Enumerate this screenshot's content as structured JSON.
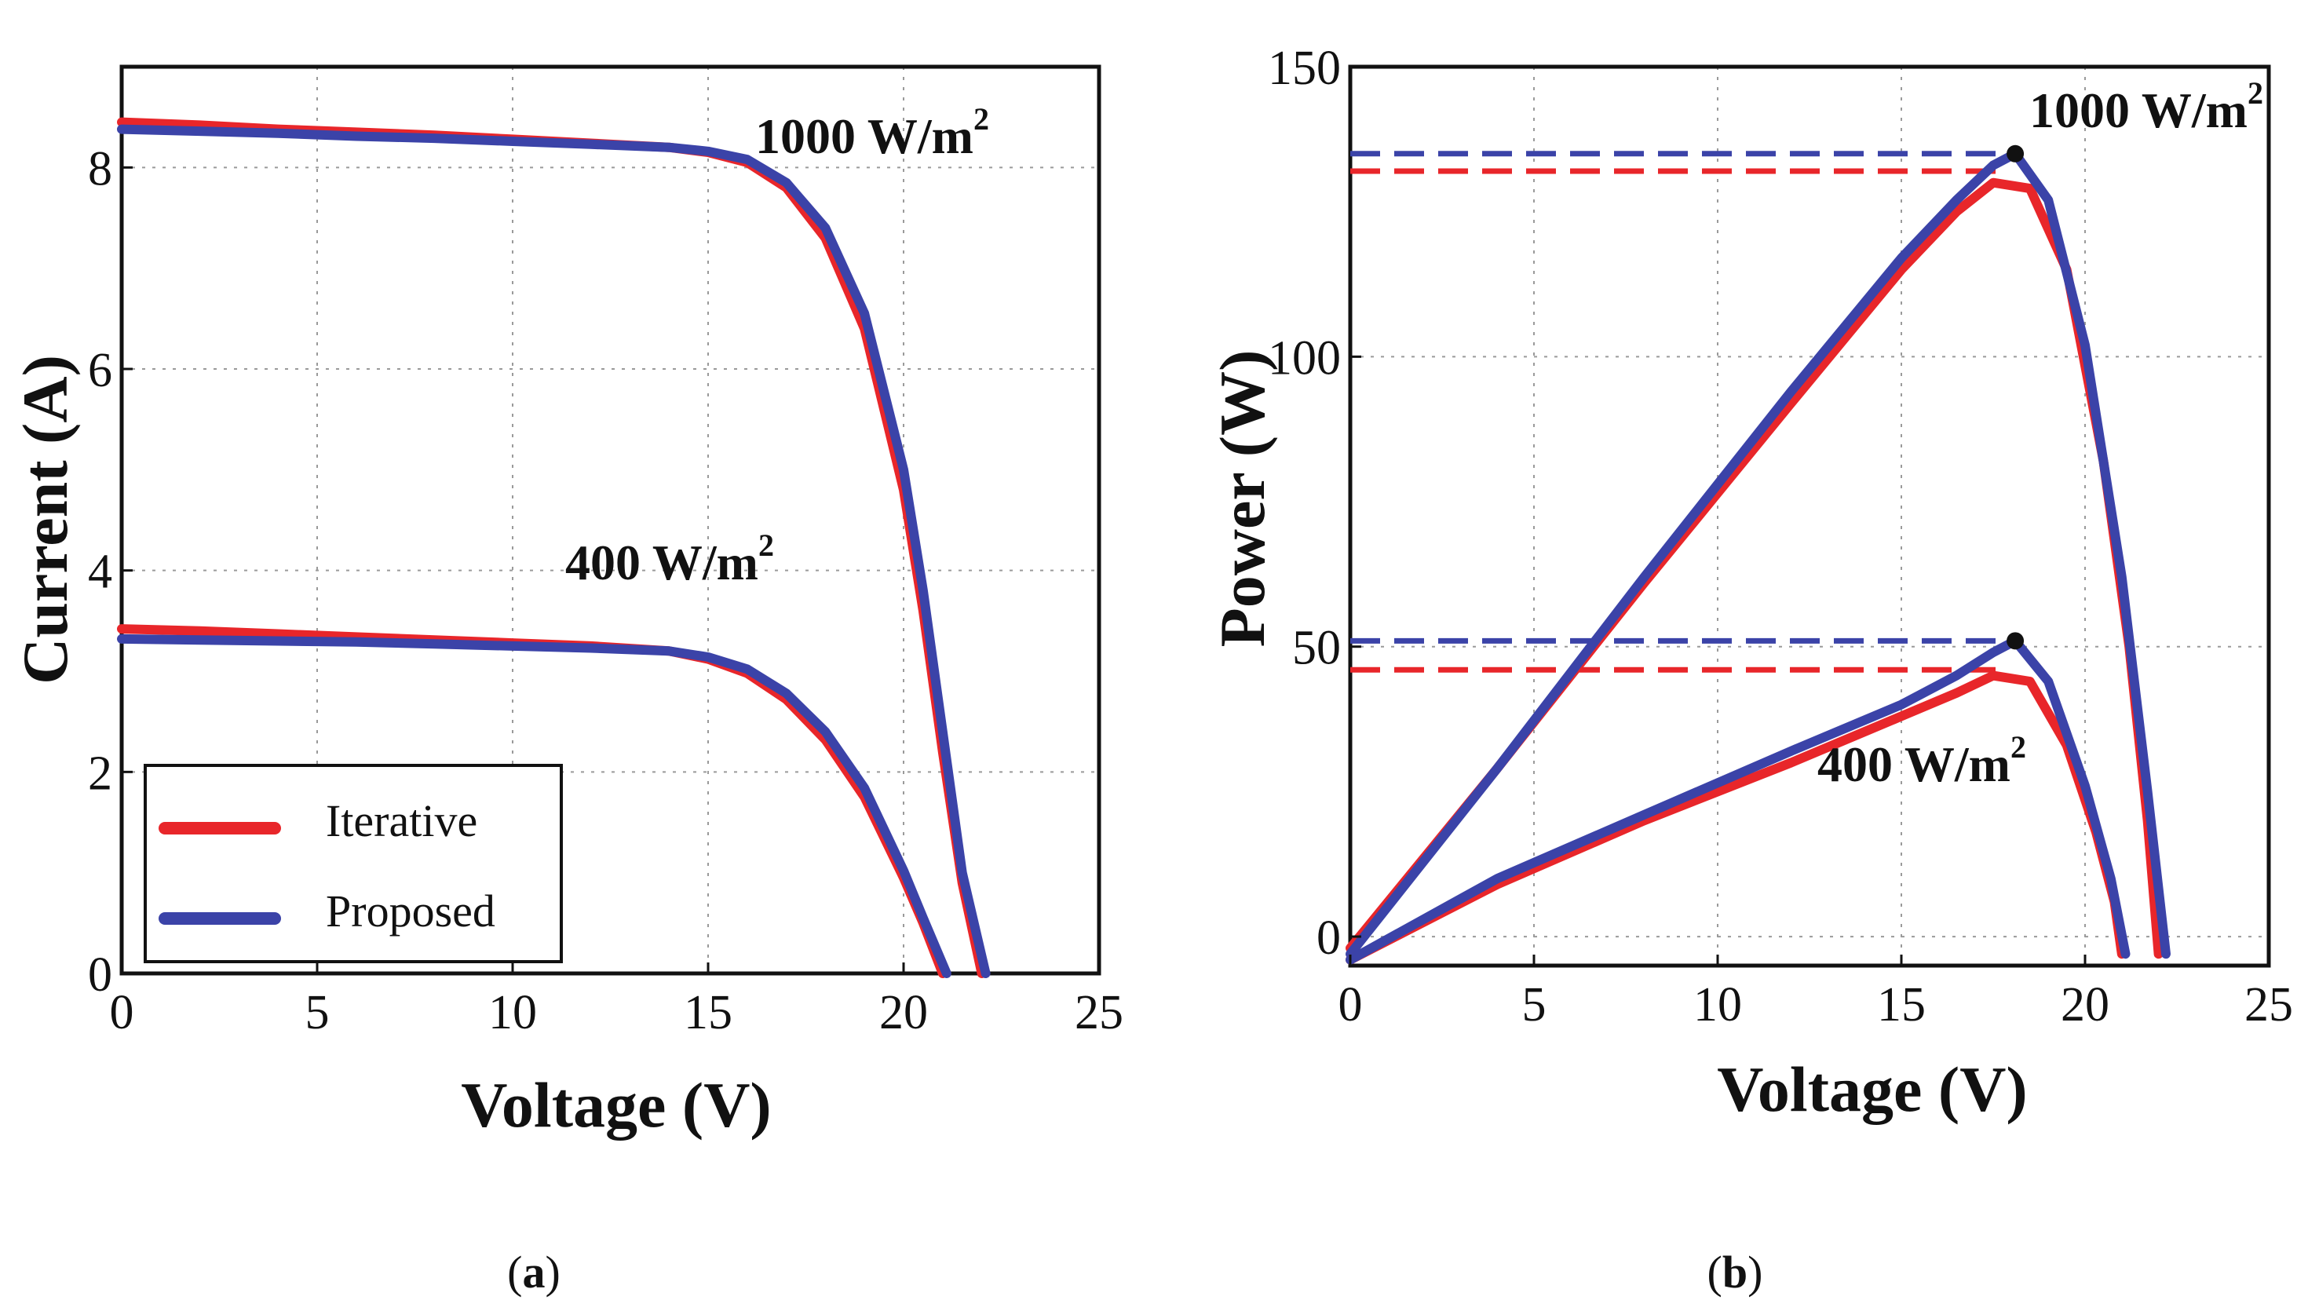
{
  "colors": {
    "iterative": "#e8262a",
    "proposed": "#3b43a8",
    "grid": "#9a9a9a",
    "axis": "#111111"
  },
  "chart_data": [
    {
      "id": "a",
      "type": "line",
      "caption_letter": "a",
      "xlabel": "Voltage (V)",
      "ylabel": "Current (A)",
      "xlim": [
        0,
        25
      ],
      "ylim": [
        0,
        9
      ],
      "xticks": [
        0,
        5,
        10,
        15,
        20,
        25
      ],
      "yticks": [
        0,
        2,
        4,
        6,
        8
      ],
      "xtick_labels": [
        "0",
        "5",
        "10",
        "15",
        "20",
        "25"
      ],
      "ytick_labels": [
        "0",
        "2",
        "4",
        "6",
        "8"
      ],
      "grid": true,
      "legend": {
        "position": "bottom-left",
        "entries": [
          {
            "name": "Iterative",
            "series": "iterative"
          },
          {
            "name": "Proposed",
            "series": "proposed"
          }
        ]
      },
      "annotations": [
        {
          "base": "1000 W/m",
          "sup": "2",
          "x": 16.2,
          "y": 8.45
        },
        {
          "base": "400 W/m",
          "sup": "2",
          "x": 11.6,
          "y": 3.85
        }
      ],
      "series": [
        {
          "name": "Iterative 1000 W/m2",
          "color_key": "iterative",
          "x": [
            0,
            2,
            4,
            6,
            8,
            10,
            12,
            14,
            15,
            16,
            17,
            18,
            19,
            20,
            20.5,
            21,
            21.5,
            22
          ],
          "y": [
            8.45,
            8.42,
            8.38,
            8.35,
            8.32,
            8.28,
            8.24,
            8.2,
            8.15,
            8.05,
            7.8,
            7.3,
            6.4,
            4.8,
            3.6,
            2.2,
            0.9,
            0
          ]
        },
        {
          "name": "Proposed 1000 W/m2",
          "color_key": "proposed",
          "x": [
            0,
            2,
            4,
            6,
            8,
            10,
            12,
            14,
            15,
            16,
            17,
            18,
            19,
            20,
            20.5,
            21,
            21.5,
            22.1
          ],
          "y": [
            8.38,
            8.36,
            8.34,
            8.31,
            8.29,
            8.26,
            8.23,
            8.2,
            8.16,
            8.08,
            7.85,
            7.4,
            6.55,
            5.0,
            3.8,
            2.4,
            1.0,
            0
          ]
        },
        {
          "name": "Iterative 400 W/m2",
          "color_key": "iterative",
          "x": [
            0,
            2,
            4,
            6,
            8,
            10,
            12,
            14,
            15,
            16,
            17,
            18,
            19,
            20,
            20.5,
            21
          ],
          "y": [
            3.42,
            3.4,
            3.37,
            3.34,
            3.31,
            3.28,
            3.25,
            3.2,
            3.12,
            2.98,
            2.72,
            2.32,
            1.75,
            0.95,
            0.5,
            0
          ]
        },
        {
          "name": "Proposed 400 W/m2",
          "color_key": "proposed",
          "x": [
            0,
            2,
            4,
            6,
            8,
            10,
            12,
            14,
            15,
            16,
            17,
            18,
            19,
            20,
            20.5,
            21.1
          ],
          "y": [
            3.32,
            3.31,
            3.3,
            3.29,
            3.27,
            3.25,
            3.23,
            3.2,
            3.14,
            3.02,
            2.78,
            2.4,
            1.84,
            1.02,
            0.55,
            0
          ]
        }
      ]
    },
    {
      "id": "b",
      "type": "line",
      "caption_letter": "b",
      "xlabel": "Voltage (V)",
      "ylabel": "Power (W)",
      "xlim": [
        0,
        25
      ],
      "ylim": [
        -5,
        150
      ],
      "xticks": [
        0,
        5,
        10,
        15,
        20,
        25
      ],
      "yticks": [
        0,
        50,
        100,
        150
      ],
      "xtick_labels": [
        "0",
        "5",
        "10",
        "15",
        "20",
        "25"
      ],
      "ytick_labels": [
        "0",
        "50",
        "100",
        "150"
      ],
      "grid": true,
      "annotations": [
        {
          "base": "1000 W/m",
          "sup": "2",
          "x": 18.4,
          "y": 141
        },
        {
          "base": "400 W/m",
          "sup": "2",
          "x": 12.7,
          "y": 29
        }
      ],
      "mpp_lines": [
        {
          "color_key": "proposed",
          "power": 135,
          "voltage": 18.1
        },
        {
          "color_key": "iterative",
          "power": 132,
          "voltage": 17.9
        },
        {
          "color_key": "proposed",
          "power": 51,
          "voltage": 18.1
        },
        {
          "color_key": "iterative",
          "power": 46,
          "voltage": 17.9
        }
      ],
      "mpp_points": [
        {
          "voltage": 18.1,
          "power": 135
        },
        {
          "voltage": 18.1,
          "power": 51
        }
      ],
      "series": [
        {
          "name": "Iterative 1000 W/m2",
          "color_key": "iterative",
          "x": [
            0,
            4,
            8,
            12,
            15,
            16.5,
            17.5,
            18.5,
            19.5,
            20.5,
            21.2,
            21.7,
            22
          ],
          "y": [
            -2,
            29,
            61,
            92,
            115,
            125,
            130,
            129,
            115,
            82,
            50,
            20,
            -3
          ]
        },
        {
          "name": "Proposed 1000 W/m2",
          "color_key": "proposed",
          "x": [
            0,
            4,
            8,
            12,
            15,
            16.5,
            17.5,
            18.1,
            19,
            20,
            21,
            21.7,
            22.2
          ],
          "y": [
            -3,
            29,
            62,
            94,
            117,
            127,
            133,
            135,
            127,
            102,
            62,
            25,
            -3
          ]
        },
        {
          "name": "Iterative 400 W/m2",
          "color_key": "iterative",
          "x": [
            0,
            4,
            8,
            12,
            15,
            16.5,
            17.5,
            18.5,
            19.5,
            20.3,
            20.8,
            21
          ],
          "y": [
            -4,
            9,
            20,
            30,
            38,
            42,
            45,
            44,
            33,
            18,
            6,
            -3
          ]
        },
        {
          "name": "Proposed 400 W/m2",
          "color_key": "proposed",
          "x": [
            0,
            4,
            8,
            12,
            15,
            16.5,
            17.5,
            18.1,
            19,
            20,
            20.7,
            21.1
          ],
          "y": [
            -4,
            10,
            21,
            32,
            40,
            45,
            49,
            51,
            44,
            26,
            10,
            -3
          ]
        }
      ]
    }
  ]
}
